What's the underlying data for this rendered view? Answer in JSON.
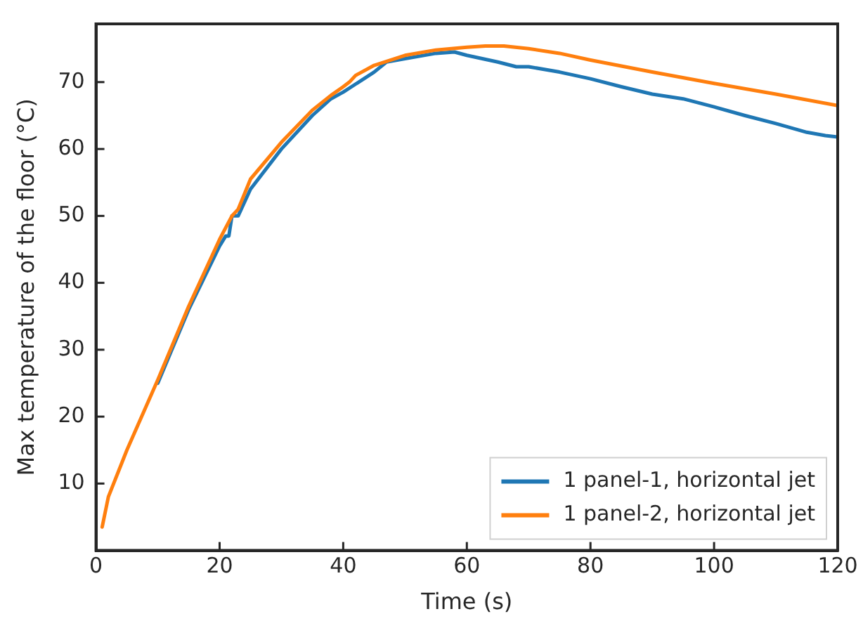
{
  "chart_data": {
    "type": "line",
    "xlabel": "Time (s)",
    "ylabel": "Max temperature of the floor (°C)",
    "xlim": [
      0,
      120
    ],
    "xticks": [
      0,
      20,
      40,
      60,
      80,
      100,
      120
    ],
    "ylim": [
      0,
      78.7
    ],
    "yticks": [
      10,
      20,
      30,
      40,
      50,
      60,
      70
    ],
    "grid": false,
    "legend": "bottom right",
    "marker": "none",
    "line_style": "solid",
    "series": [
      {
        "name": "1 panel-1, horizontal jet",
        "color": "#1f77b4",
        "x": [
          10,
          15,
          20,
          21,
          21.5,
          22,
          23,
          25,
          30,
          35,
          38,
          40,
          45,
          47,
          50,
          55,
          58,
          60,
          65,
          68,
          70,
          75,
          80,
          85,
          90,
          95,
          100,
          105,
          110,
          115,
          118,
          120
        ],
        "values": [
          25,
          36,
          45.5,
          47,
          47,
          50,
          50,
          54,
          60,
          65,
          67.5,
          68.5,
          71.5,
          73,
          73.5,
          74.3,
          74.5,
          74,
          73,
          72.3,
          72.3,
          71.5,
          70.5,
          69.3,
          68.2,
          67.5,
          66.3,
          65,
          63.8,
          62.5,
          62,
          61.8
        ]
      },
      {
        "name": "1 panel-2, horizontal jet",
        "color": "#ff7f0e",
        "x": [
          1,
          2,
          5,
          10,
          15,
          20,
          22,
          23,
          25,
          30,
          35,
          38,
          40,
          41,
          42,
          45,
          50,
          55,
          60,
          63,
          66,
          70,
          75,
          80,
          90,
          100,
          110,
          120
        ],
        "values": [
          3.5,
          8,
          15,
          25.5,
          36.5,
          46.5,
          50,
          51,
          55.5,
          61,
          65.8,
          68,
          69.3,
          70,
          71,
          72.5,
          74,
          74.8,
          75.2,
          75.4,
          75.4,
          75,
          74.3,
          73.3,
          71.5,
          69.8,
          68.2,
          66.5
        ]
      }
    ]
  }
}
